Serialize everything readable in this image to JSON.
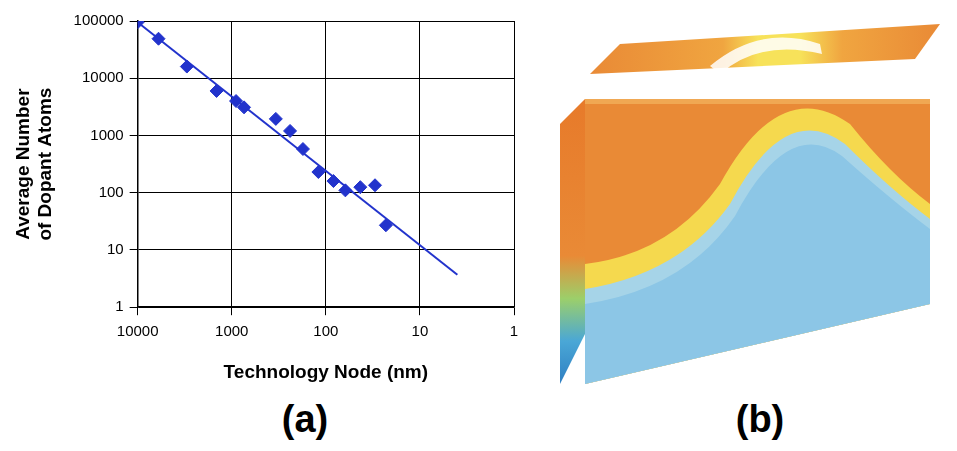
{
  "chart_data": {
    "type": "scatter",
    "x_label": "Technology Node (nm)",
    "y_label": "Average Number of Dopant Atoms",
    "log": true,
    "grid": true,
    "xlim": [
      10000,
      1
    ],
    "xticks": [
      10000,
      1000,
      100,
      10,
      1
    ],
    "ylim": [
      1,
      100000
    ],
    "yticks": [
      1,
      10,
      100,
      1000,
      10000,
      100000
    ],
    "series": [
      {
        "type": "scatter",
        "marker": "diamond",
        "color": "#2233cc",
        "x": [
          10000,
          6000,
          3000,
          1450,
          900,
          740,
          340,
          240,
          175,
          120,
          83,
          62,
          43,
          30,
          23
        ],
        "values": [
          95000,
          49000,
          16000,
          6000,
          4000,
          3100,
          1950,
          1200,
          580,
          230,
          160,
          110,
          125,
          135,
          27
        ]
      },
      {
        "type": "line",
        "line_style": "solid",
        "color": "#2233cc",
        "x": [
          10000,
          4
        ],
        "values": [
          95000,
          3.7
        ]
      }
    ]
  },
  "panel_labels": [
    "(a)",
    "(b)"
  ]
}
